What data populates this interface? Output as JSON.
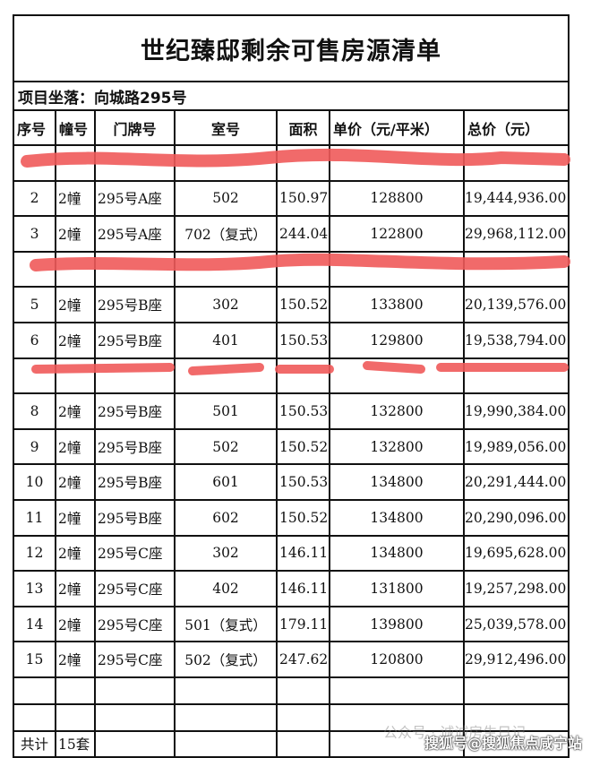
{
  "title": "世纪臻邸剩余可售房源清单",
  "location": "项目坐落：向城路295号",
  "headers": [
    "序号",
    "幢号",
    "门牌号",
    "室号",
    "面积",
    "单价（元/平米）",
    "总价（元）"
  ],
  "rows": [
    {
      "no": "",
      "bld": "",
      "addr": "",
      "room": "",
      "area": "",
      "price": "",
      "total": "",
      "redacted": true
    },
    {
      "no": "2",
      "bld": "2幢",
      "addr": "295号A座",
      "room": "502",
      "area": "150.97",
      "price": "128800",
      "total": "19,444,936.00"
    },
    {
      "no": "3",
      "bld": "2幢",
      "addr": "295号A座",
      "room": "702（复式）",
      "area": "244.04",
      "price": "122800",
      "total": "29,968,112.00"
    },
    {
      "no": "",
      "bld": "",
      "addr": "",
      "room": "",
      "area": "",
      "price": "",
      "total": "",
      "redacted": true
    },
    {
      "no": "5",
      "bld": "2幢",
      "addr": "295号B座",
      "room": "302",
      "area": "150.52",
      "price": "133800",
      "total": "20,139,576.00"
    },
    {
      "no": "6",
      "bld": "2幢",
      "addr": "295号B座",
      "room": "401",
      "area": "150.53",
      "price": "129800",
      "total": "19,538,794.00"
    },
    {
      "no": "",
      "bld": "",
      "addr": "",
      "room": "",
      "area": "",
      "price": "",
      "total": "",
      "redacted": true
    },
    {
      "no": "8",
      "bld": "2幢",
      "addr": "295号B座",
      "room": "501",
      "area": "150.53",
      "price": "132800",
      "total": "19,990,384.00"
    },
    {
      "no": "9",
      "bld": "2幢",
      "addr": "295号B座",
      "room": "502",
      "area": "150.52",
      "price": "132800",
      "total": "19,989,056.00"
    },
    {
      "no": "10",
      "bld": "2幢",
      "addr": "295号B座",
      "room": "601",
      "area": "150.53",
      "price": "134800",
      "total": "20,291,444.00"
    },
    {
      "no": "11",
      "bld": "2幢",
      "addr": "295号B座",
      "room": "602",
      "area": "150.52",
      "price": "134800",
      "total": "20,290,096.00"
    },
    {
      "no": "12",
      "bld": "2幢",
      "addr": "295号C座",
      "room": "302",
      "area": "146.11",
      "price": "134800",
      "total": "19,695,628.00"
    },
    {
      "no": "13",
      "bld": "2幢",
      "addr": "295号C座",
      "room": "402",
      "area": "146.11",
      "price": "131800",
      "total": "19,257,298.00"
    },
    {
      "no": "14",
      "bld": "2幢",
      "addr": "295号C座",
      "room": "501（复式）",
      "area": "179.11",
      "price": "139800",
      "total": "25,039,578.00"
    },
    {
      "no": "15",
      "bld": "2幢",
      "addr": "295号C座",
      "room": "502（复式）",
      "area": "247.62",
      "price": "120800",
      "total": "29,912,496.00"
    }
  ],
  "total_row": {
    "label": "共计",
    "count": "15套"
  },
  "watermarks": [
    "公众号 · 诚诚房生日记",
    "搜狐号@搜狐焦点咸宁站"
  ],
  "colors": {
    "redaction": "#f05a5a"
  }
}
